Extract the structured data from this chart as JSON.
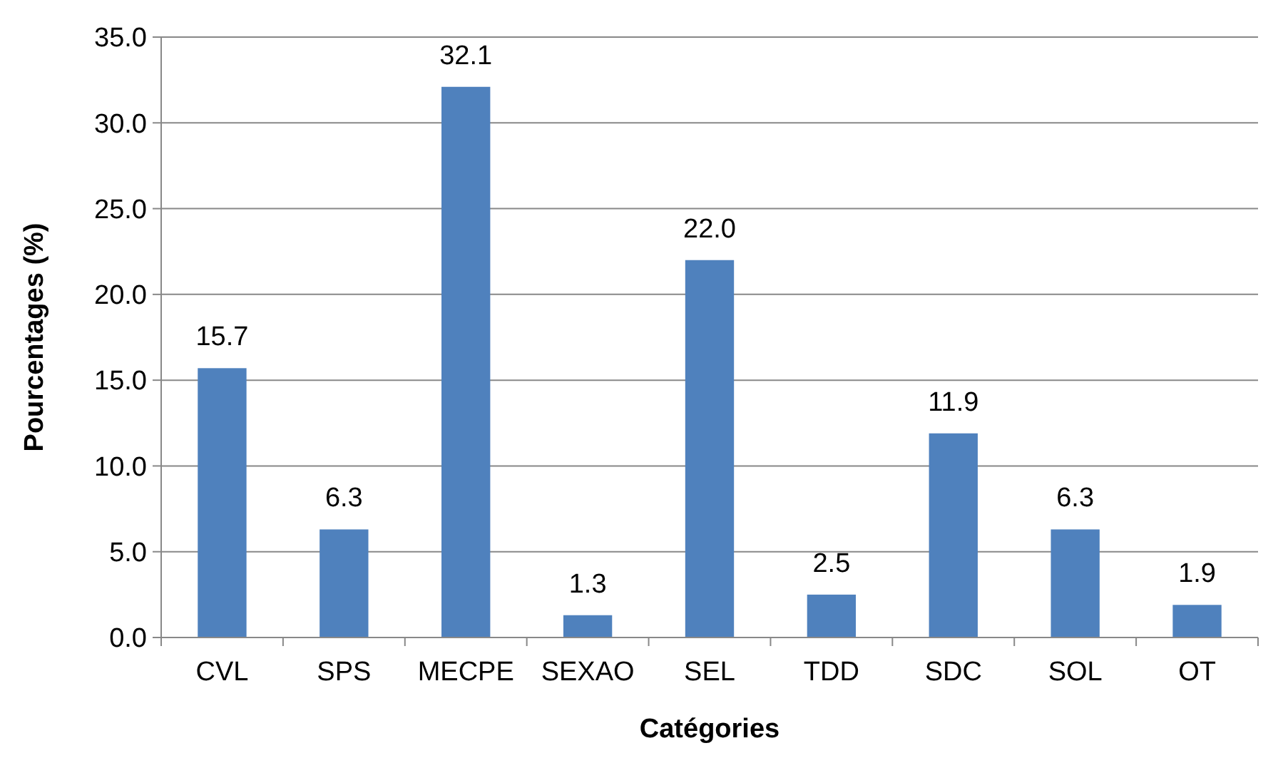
{
  "chart_data": {
    "type": "bar",
    "xlabel": "Catégories",
    "ylabel": "Pourcentages (%)",
    "categories": [
      "CVL",
      "SPS",
      "MECPE",
      "SEXAO",
      "SEL",
      "TDD",
      "SDC",
      "SOL",
      "OT"
    ],
    "values": [
      15.7,
      6.3,
      32.1,
      1.3,
      22.0,
      2.5,
      11.9,
      6.3,
      1.9
    ],
    "value_labels": [
      "15.7",
      "6.3",
      "32.1",
      "1.3",
      "22.0",
      "2.5",
      "11.9",
      "6.3",
      "1.9"
    ],
    "color": "#4f81bd",
    "ylim": [
      0,
      35
    ],
    "yticks": [
      {
        "value": 0,
        "label": "0.0"
      },
      {
        "value": 5,
        "label": "5.0"
      },
      {
        "value": 10,
        "label": "10.0"
      },
      {
        "value": 15,
        "label": "15.0"
      },
      {
        "value": 20,
        "label": "20.0"
      },
      {
        "value": 25,
        "label": "25.0"
      },
      {
        "value": 30,
        "label": "30.0"
      },
      {
        "value": 35,
        "label": "35.0"
      }
    ],
    "grid": "y"
  }
}
